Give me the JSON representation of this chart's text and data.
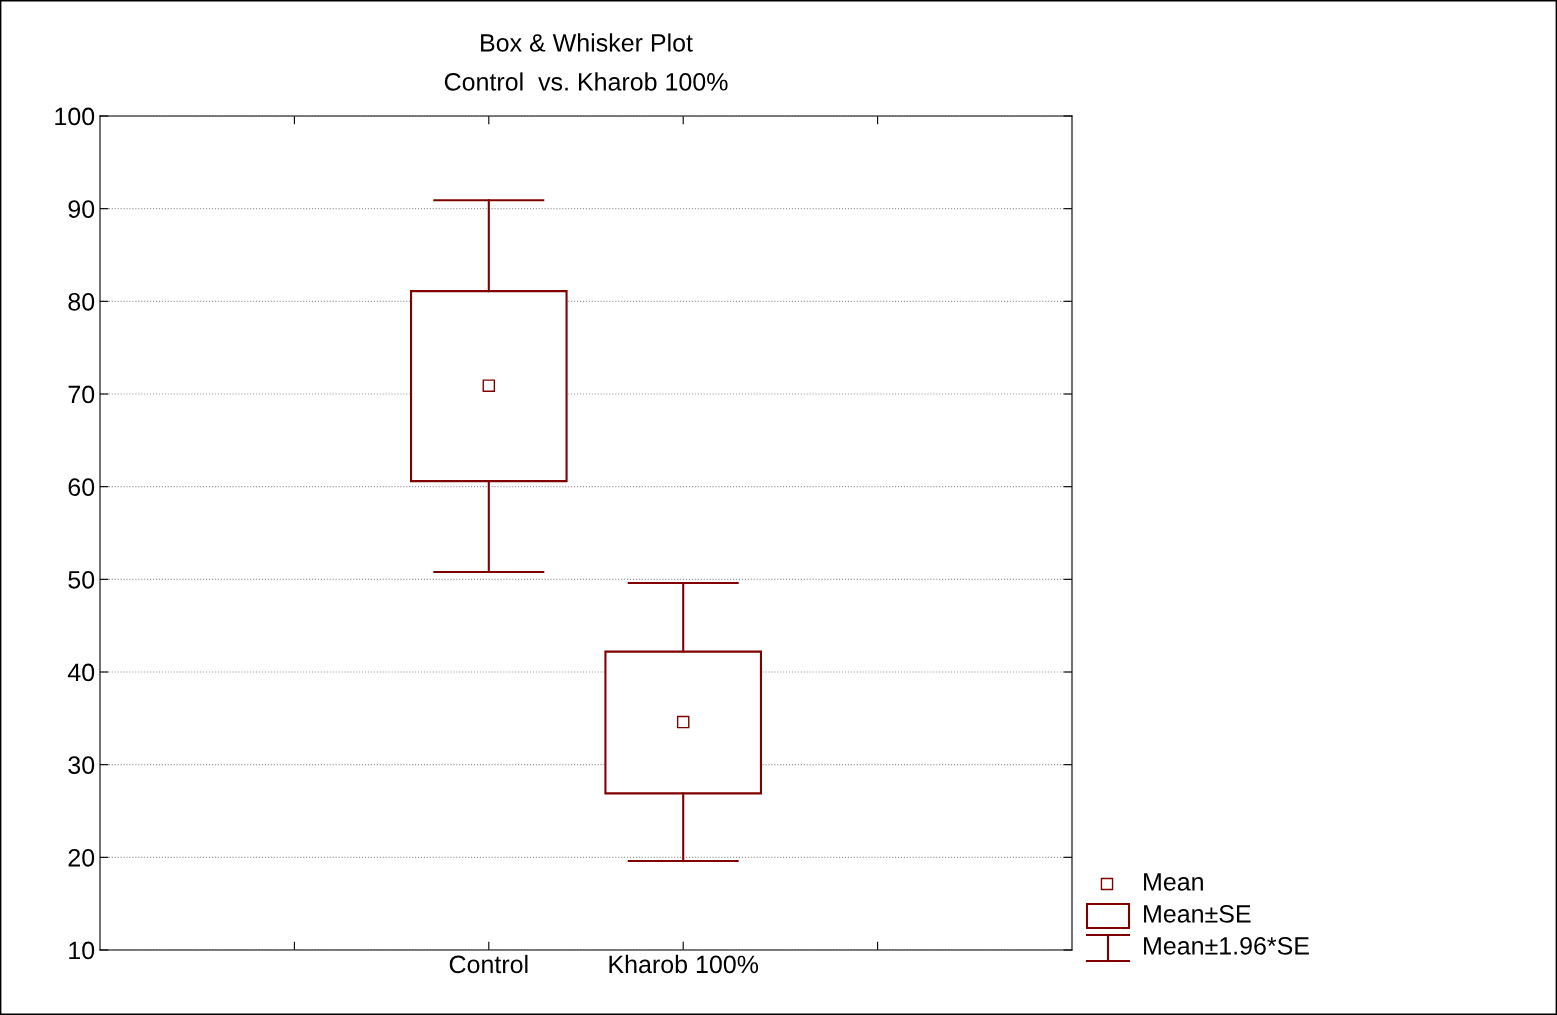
{
  "chart_data": {
    "type": "box",
    "title": "Box & Whisker Plot",
    "subtitle": "Control  vs. Kharob 100%",
    "categories": [
      null,
      "Control",
      "Kharob 100%",
      null
    ],
    "boxes": [
      null,
      {
        "low": 50.8,
        "q1": 60.6,
        "q3": 81.1,
        "high": 90.9,
        "mean": 70.9
      },
      {
        "low": 19.6,
        "q1": 26.9,
        "q3": 42.2,
        "high": 49.6,
        "mean": 34.6
      },
      null
    ],
    "color": "#800000",
    "ylim": [
      10,
      100
    ],
    "yticks": [
      10,
      20,
      30,
      40,
      50,
      60,
      70,
      80,
      90,
      100
    ],
    "grid": "y",
    "marker": "square",
    "annotations": [
      "Mean",
      "Mean±SE",
      "Mean±1.96*SE"
    ]
  }
}
